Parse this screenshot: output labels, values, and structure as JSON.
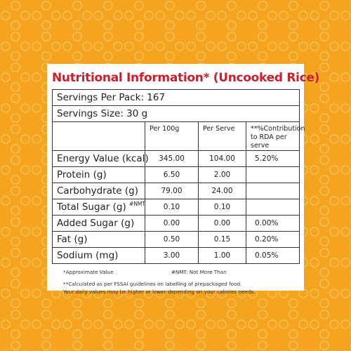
{
  "title": "Nutritional Information* (Uncooked Rice)",
  "servings_per_pack": "Servings Per Pack: 167",
  "serving_size": "Servings Size: 30 g",
  "columns": [
    "",
    "Per 100g",
    "Per Serve",
    "**%Contribution to RDA per serve"
  ],
  "rows": [
    {
      "label": "Energy Value (kcal)",
      "sup": "",
      "per100": "345.00",
      "perserve": "104.00",
      "rda": "5.20%"
    },
    {
      "label": "Protein (g)",
      "sup": "",
      "per100": "6.50",
      "perserve": "2.00",
      "rda": ""
    },
    {
      "label": "Carbohydrate (g)",
      "sup": "",
      "per100": "79.00",
      "perserve": "24.00",
      "rda": ""
    },
    {
      "label": "Total Sugar (g)",
      "sup": "#NMT",
      "per100": "0.10",
      "perserve": "0.10",
      "rda": ""
    },
    {
      "label": "Added Sugar (g)",
      "sup": "",
      "per100": "0.00",
      "perserve": "0.00",
      "rda": "0.00%"
    },
    {
      "label": "Fat (g)",
      "sup": "",
      "per100": "0.50",
      "perserve": "0.15",
      "rda": "0.20%"
    },
    {
      "label": "Sodium (mg)",
      "sup": "",
      "per100": "3.00",
      "perserve": "1.00",
      "rda": "0.05%"
    }
  ],
  "notes": {
    "approx": "*Approximate Value",
    "nmt": "#NMT: Not More Than",
    "calc": "**Calculated as per FSSAI guidelines on labelling of prepackaged food.",
    "daily": "Your daily values may be higher or lower depending on your calories needs."
  },
  "colors": {
    "background": "#f4a41e",
    "pattern": "#f8c05a",
    "title": "#c8202c"
  }
}
